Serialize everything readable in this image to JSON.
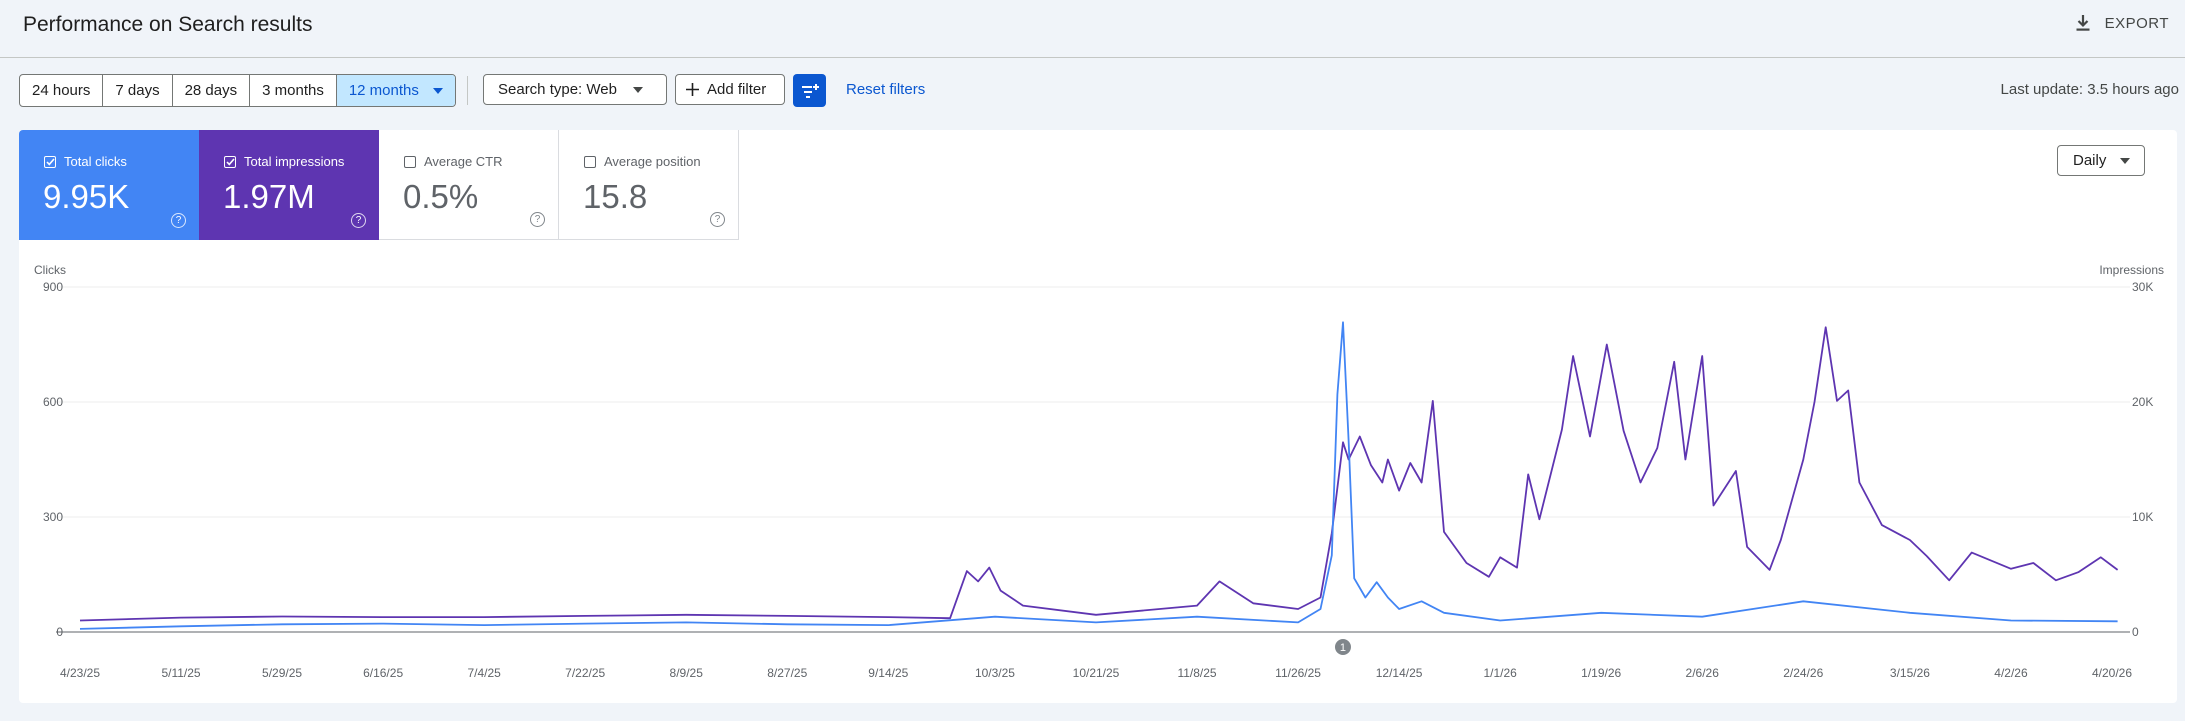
{
  "header": {
    "title": "Performance on Search results",
    "export_label": "EXPORT",
    "export_icon": "download-icon"
  },
  "toolbar": {
    "ranges": [
      "24 hours",
      "7 days",
      "28 days",
      "3 months",
      "12 months"
    ],
    "active_range": "12 months",
    "search_type": "Search type: Web",
    "add_filter": "Add filter",
    "reset_filters": "Reset filters",
    "last_update": "Last update: 3.5 hours ago"
  },
  "metrics": [
    {
      "label": "Total clicks",
      "value": "9.95K",
      "checked": true,
      "color": "#4285f4"
    },
    {
      "label": "Total impressions",
      "value": "1.97M",
      "checked": true,
      "color": "#5e35b1"
    },
    {
      "label": "Average CTR",
      "value": "0.5%",
      "checked": false
    },
    {
      "label": "Average position",
      "value": "15.8",
      "checked": false
    }
  ],
  "granularity": "Daily",
  "chart_data": {
    "type": "line",
    "y_left_label": "Clicks",
    "y_right_label": "Impressions",
    "y_left_ticks": [
      "900",
      "600",
      "300",
      "0"
    ],
    "y_right_ticks": [
      "30K",
      "20K",
      "10K",
      "0"
    ],
    "y_left_range": [
      0,
      900
    ],
    "y_right_range": [
      0,
      30000
    ],
    "x_ticks": [
      "4/23/25",
      "5/11/25",
      "5/29/25",
      "6/16/25",
      "7/4/25",
      "7/22/25",
      "8/9/25",
      "8/27/25",
      "9/14/25",
      "10/3/25",
      "10/21/25",
      "11/8/25",
      "11/26/25",
      "12/14/25",
      "1/1/26",
      "1/19/26",
      "2/6/26",
      "2/24/26",
      "3/15/26",
      "4/2/26",
      "4/20/26"
    ],
    "annotation": "1",
    "annotation_date": "12/4/25",
    "grid": true,
    "series": [
      {
        "name": "Total impressions",
        "axis": "right",
        "color": "#5e35b1",
        "points": [
          [
            "4/23/25",
            1000
          ],
          [
            "5/11/25",
            1250
          ],
          [
            "5/29/25",
            1350
          ],
          [
            "6/16/25",
            1300
          ],
          [
            "7/4/25",
            1300
          ],
          [
            "7/22/25",
            1400
          ],
          [
            "8/9/25",
            1500
          ],
          [
            "8/27/25",
            1400
          ],
          [
            "9/14/25",
            1300
          ],
          [
            "9/25/25",
            1200
          ],
          [
            "9/28/25",
            5300
          ],
          [
            "9/30/25",
            4400
          ],
          [
            "10/2/25",
            5600
          ],
          [
            "10/4/25",
            3600
          ],
          [
            "10/8/25",
            2300
          ],
          [
            "10/21/25",
            1500
          ],
          [
            "11/8/25",
            2300
          ],
          [
            "11/12/25",
            4400
          ],
          [
            "11/18/25",
            2500
          ],
          [
            "11/26/25",
            2000
          ],
          [
            "11/30/25",
            3000
          ],
          [
            "12/2/25",
            8600
          ],
          [
            "12/4/25",
            16500
          ],
          [
            "12/5/25",
            15000
          ],
          [
            "12/7/25",
            17000
          ],
          [
            "12/9/25",
            14500
          ],
          [
            "12/11/25",
            13000
          ],
          [
            "12/12/25",
            15000
          ],
          [
            "12/14/25",
            12300
          ],
          [
            "12/16/25",
            14700
          ],
          [
            "12/18/25",
            13000
          ],
          [
            "12/20/25",
            20100
          ],
          [
            "12/22/25",
            8700
          ],
          [
            "12/26/25",
            6000
          ],
          [
            "12/30/25",
            4800
          ],
          [
            "1/1/26",
            6500
          ],
          [
            "1/4/26",
            5600
          ],
          [
            "1/6/26",
            13700
          ],
          [
            "1/8/26",
            9800
          ],
          [
            "1/12/26",
            17600
          ],
          [
            "1/14/26",
            24000
          ],
          [
            "1/17/26",
            17000
          ],
          [
            "1/20/26",
            25000
          ],
          [
            "1/23/26",
            17500
          ],
          [
            "1/26/26",
            13000
          ],
          [
            "1/29/26",
            16000
          ],
          [
            "2/1/26",
            23500
          ],
          [
            "2/3/26",
            15000
          ],
          [
            "2/6/26",
            24000
          ],
          [
            "2/8/26",
            11000
          ],
          [
            "2/12/26",
            14000
          ],
          [
            "2/14/26",
            7400
          ],
          [
            "2/18/26",
            5400
          ],
          [
            "2/20/26",
            8000
          ],
          [
            "2/24/26",
            15000
          ],
          [
            "2/26/26",
            20000
          ],
          [
            "2/28/26",
            26500
          ],
          [
            "3/2/26",
            20100
          ],
          [
            "3/4/26",
            21000
          ],
          [
            "3/6/26",
            13000
          ],
          [
            "3/10/26",
            9300
          ],
          [
            "3/15/26",
            8000
          ],
          [
            "3/18/26",
            6600
          ],
          [
            "3/22/26",
            4500
          ],
          [
            "3/26/26",
            6900
          ],
          [
            "4/2/26",
            5500
          ],
          [
            "4/6/26",
            6000
          ],
          [
            "4/10/26",
            4500
          ],
          [
            "4/14/26",
            5200
          ],
          [
            "4/18/26",
            6500
          ],
          [
            "4/21/26",
            5400
          ]
        ]
      },
      {
        "name": "Total clicks",
        "axis": "left",
        "color": "#4285f4",
        "points": [
          [
            "4/23/25",
            8
          ],
          [
            "5/11/25",
            15
          ],
          [
            "5/29/25",
            20
          ],
          [
            "6/16/25",
            22
          ],
          [
            "7/4/25",
            18
          ],
          [
            "7/22/25",
            22
          ],
          [
            "8/9/25",
            25
          ],
          [
            "8/27/25",
            20
          ],
          [
            "9/14/25",
            18
          ],
          [
            "10/3/25",
            40
          ],
          [
            "10/21/25",
            25
          ],
          [
            "11/8/25",
            40
          ],
          [
            "11/26/25",
            25
          ],
          [
            "11/30/25",
            60
          ],
          [
            "12/2/25",
            200
          ],
          [
            "12/3/25",
            620
          ],
          [
            "12/4/25",
            808
          ],
          [
            "12/5/25",
            500
          ],
          [
            "12/6/25",
            140
          ],
          [
            "12/8/25",
            90
          ],
          [
            "12/10/25",
            130
          ],
          [
            "12/12/25",
            90
          ],
          [
            "12/14/25",
            60
          ],
          [
            "12/18/25",
            80
          ],
          [
            "12/22/25",
            50
          ],
          [
            "1/1/26",
            30
          ],
          [
            "1/19/26",
            50
          ],
          [
            "2/6/26",
            40
          ],
          [
            "2/24/26",
            80
          ],
          [
            "3/15/26",
            50
          ],
          [
            "4/2/26",
            30
          ],
          [
            "4/21/26",
            28
          ]
        ]
      }
    ]
  }
}
